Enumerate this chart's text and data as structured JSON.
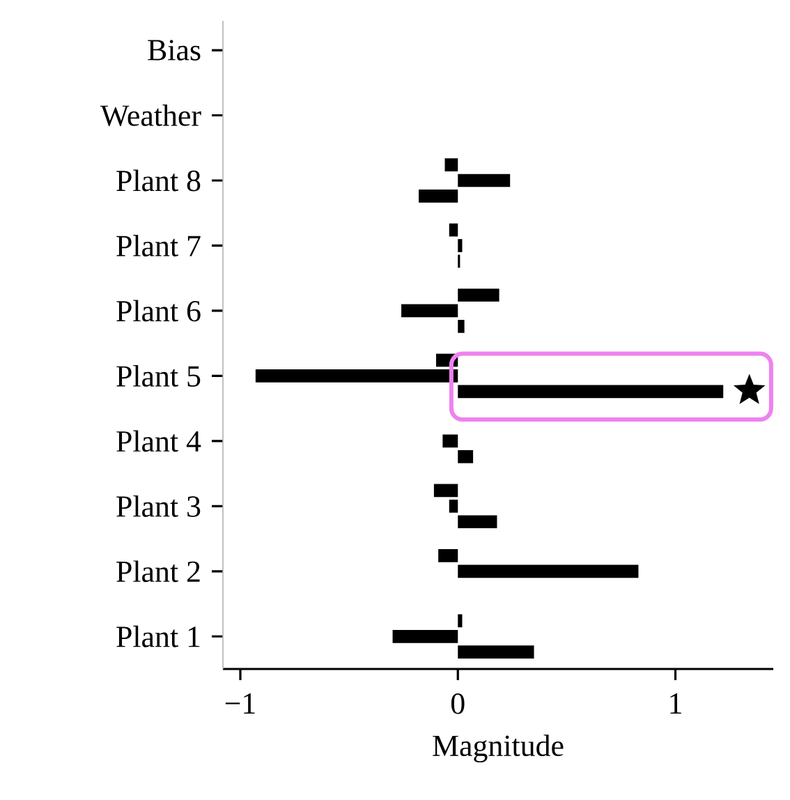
{
  "chart_data": {
    "type": "bar",
    "orientation": "horizontal",
    "xlabel": "Magnitude",
    "categories": [
      "Bias",
      "Weather",
      "Plant 8",
      "Plant 7",
      "Plant 6",
      "Plant 5",
      "Plant 4",
      "Plant 3",
      "Plant 2",
      "Plant 1"
    ],
    "series": [
      {
        "color": "#000000",
        "values": [
          0,
          0,
          -0.06,
          -0.04,
          0.19,
          -0.1,
          0,
          -0.11,
          -0.09,
          0.02
        ]
      },
      {
        "color": "#000000",
        "values": [
          0,
          0,
          0.24,
          0.02,
          -0.26,
          -0.93,
          -0.07,
          -0.04,
          0.83,
          -0.3
        ]
      },
      {
        "color": "#000000",
        "values": [
          0,
          0,
          -0.18,
          0.01,
          0.03,
          1.22,
          0.07,
          0.18,
          0,
          0.35
        ]
      }
    ],
    "xlim": [
      -1.08,
      1.45
    ],
    "xticks": [
      {
        "value": -1,
        "label": "−1"
      },
      0,
      1
    ]
  }
}
